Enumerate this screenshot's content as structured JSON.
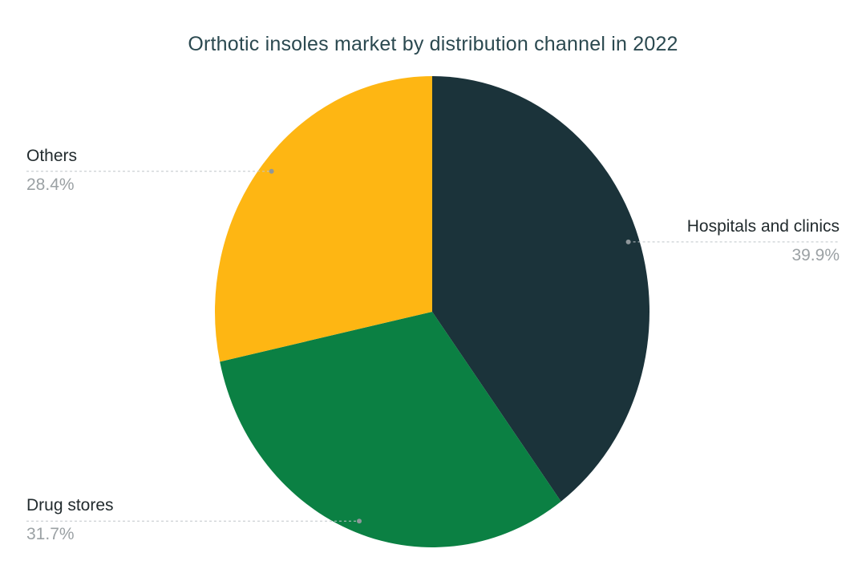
{
  "chart_data": {
    "type": "pie",
    "title": "Orthotic insoles market by distribution channel in 2022",
    "unit": "%",
    "start_angle_deg": 0,
    "direction": "clockwise",
    "legend": "none",
    "grid": "off",
    "slices": [
      {
        "label": "Hospitals and clinics",
        "value": 39.9,
        "display": "39.9%",
        "color": "#1B333A"
      },
      {
        "label": "Drug stores",
        "value": 31.7,
        "display": "31.7%",
        "color": "#0B8043"
      },
      {
        "label": "Others",
        "value": 28.4,
        "display": "28.4%",
        "color": "#FEB613"
      }
    ],
    "style": {
      "title_color": "#2B4950",
      "label_color": "#222B2E",
      "value_color": "#9BA1A4",
      "leader_line_color": "#BFC5C9",
      "leader_dot_color": "#8F979B",
      "background": "#FFFFFF"
    }
  }
}
